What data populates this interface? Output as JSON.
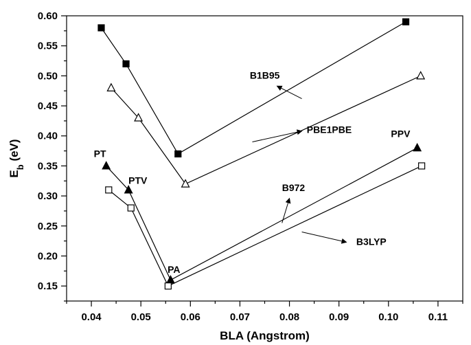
{
  "chart_data": {
    "type": "line",
    "xlabel": "BLA (Angstrom)",
    "ylabel_main": "E",
    "ylabel_sub": "b",
    "ylabel_unit": " (eV)",
    "xlim": [
      0.035,
      0.115
    ],
    "ylim": [
      0.125,
      0.6
    ],
    "x_ticks": [
      0.04,
      0.05,
      0.06,
      0.07,
      0.08,
      0.09,
      0.1,
      0.11
    ],
    "x_tick_labels": [
      "0.04",
      "0.05",
      "0.06",
      "0.07",
      "0.08",
      "0.09",
      "0.10",
      "0.11"
    ],
    "y_ticks": [
      0.15,
      0.2,
      0.25,
      0.3,
      0.35,
      0.4,
      0.45,
      0.5,
      0.55,
      0.6
    ],
    "y_tick_labels": [
      "0.15",
      "0.20",
      "0.25",
      "0.30",
      "0.35",
      "0.40",
      "0.45",
      "0.50",
      "0.55",
      "0.60"
    ],
    "grid": false,
    "series": [
      {
        "name": "B1B95",
        "marker": "filled-square",
        "x": [
          0.042,
          0.047,
          0.0575,
          0.1035
        ],
        "y": [
          0.58,
          0.52,
          0.37,
          0.59
        ]
      },
      {
        "name": "PBE1PBE",
        "marker": "open-triangle",
        "x": [
          0.044,
          0.0495,
          0.059,
          0.1065
        ],
        "y": [
          0.48,
          0.43,
          0.32,
          0.5
        ]
      },
      {
        "name": "B972",
        "marker": "filled-triangle",
        "x": [
          0.043,
          0.0475,
          0.056,
          0.1058
        ],
        "y": [
          0.35,
          0.31,
          0.16,
          0.38
        ]
      },
      {
        "name": "B3LYP",
        "marker": "open-square",
        "x": [
          0.0435,
          0.048,
          0.0555,
          0.1067
        ],
        "y": [
          0.31,
          0.28,
          0.15,
          0.35
        ]
      }
    ],
    "annotations": [
      {
        "text": "PT",
        "x": 0.0405,
        "y": 0.365
      },
      {
        "text": "PTV",
        "x": 0.0475,
        "y": 0.32
      },
      {
        "text": "PA",
        "x": 0.0554,
        "y": 0.172
      },
      {
        "text": "PPV",
        "x": 0.1005,
        "y": 0.398
      }
    ],
    "label_callouts": [
      {
        "series": "B1B95",
        "text": "B1B95",
        "text_x": 0.072,
        "text_y": 0.495,
        "from": [
          0.0825,
          0.462
        ],
        "to": [
          0.0775,
          0.483
        ]
      },
      {
        "series": "PBE1PBE",
        "text": "PBE1PBE",
        "text_x": 0.0835,
        "text_y": 0.405,
        "from": [
          0.0725,
          0.39
        ],
        "to": [
          0.0825,
          0.408
        ]
      },
      {
        "series": "B972",
        "text": "B972",
        "text_x": 0.0785,
        "text_y": 0.308,
        "from": [
          0.0785,
          0.255
        ],
        "to": [
          0.08,
          0.296
        ]
      },
      {
        "series": "B3LYP",
        "text": "B3LYP",
        "text_x": 0.0935,
        "text_y": 0.218,
        "from": [
          0.0825,
          0.24
        ],
        "to": [
          0.0915,
          0.223
        ]
      }
    ]
  }
}
